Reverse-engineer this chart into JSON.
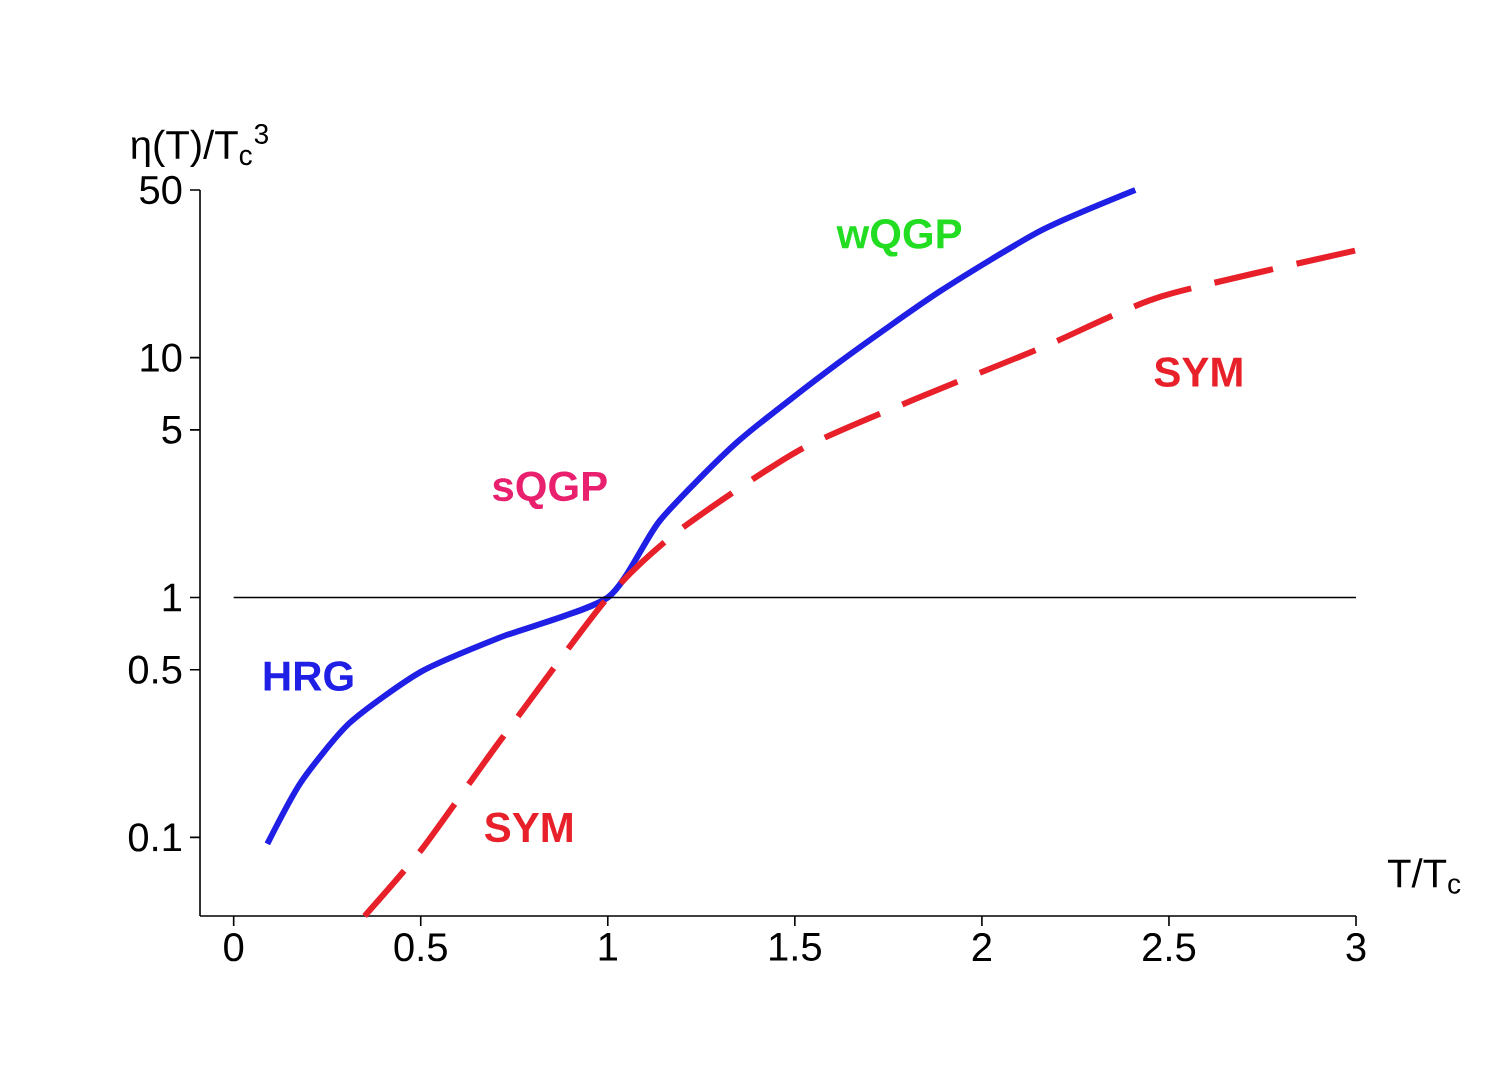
{
  "chart_data": {
    "type": "line",
    "ylabel": "η(T)/T$_{c}$$^{3}$",
    "xlabel": "T/T$_{c}$",
    "log": "y",
    "grid": false,
    "marker": "none",
    "xlim": [
      -0.09,
      3
    ],
    "ylim": [
      0.047,
      50
    ],
    "xticks": [
      0,
      0.5,
      1,
      1.5,
      2,
      2.5,
      3
    ],
    "yticks": [
      0.1,
      0.5,
      1,
      5,
      10,
      50
    ],
    "series": [
      {
        "color": "#1f1fe6",
        "line_style": "solid",
        "x": [
          0.09,
          0.18,
          0.31,
          0.5,
          0.71,
          1.0,
          1.14,
          1.35,
          1.62,
          1.89,
          2.16,
          2.41
        ],
        "values": [
          0.094,
          0.17,
          0.3,
          0.49,
          0.68,
          1.0,
          2.1,
          4.5,
          9.6,
          19,
          34,
          50
        ]
      },
      {
        "color": "#e8202a",
        "line_style": "dashed",
        "x": [
          0.35,
          0.5,
          0.71,
          1.0,
          1.19,
          1.51,
          1.83,
          2.16,
          2.48,
          3.0
        ],
        "values": [
          0.047,
          0.088,
          0.25,
          1.0,
          1.9,
          4.1,
          6.8,
          11,
          18,
          28
        ]
      }
    ],
    "ref_lines": [
      {
        "axis": "y",
        "value": 1,
        "color": "#000000"
      }
    ],
    "annotations": [
      "wQGP",
      "SYM",
      "sQGP",
      "HRG",
      "SYM"
    ]
  }
}
